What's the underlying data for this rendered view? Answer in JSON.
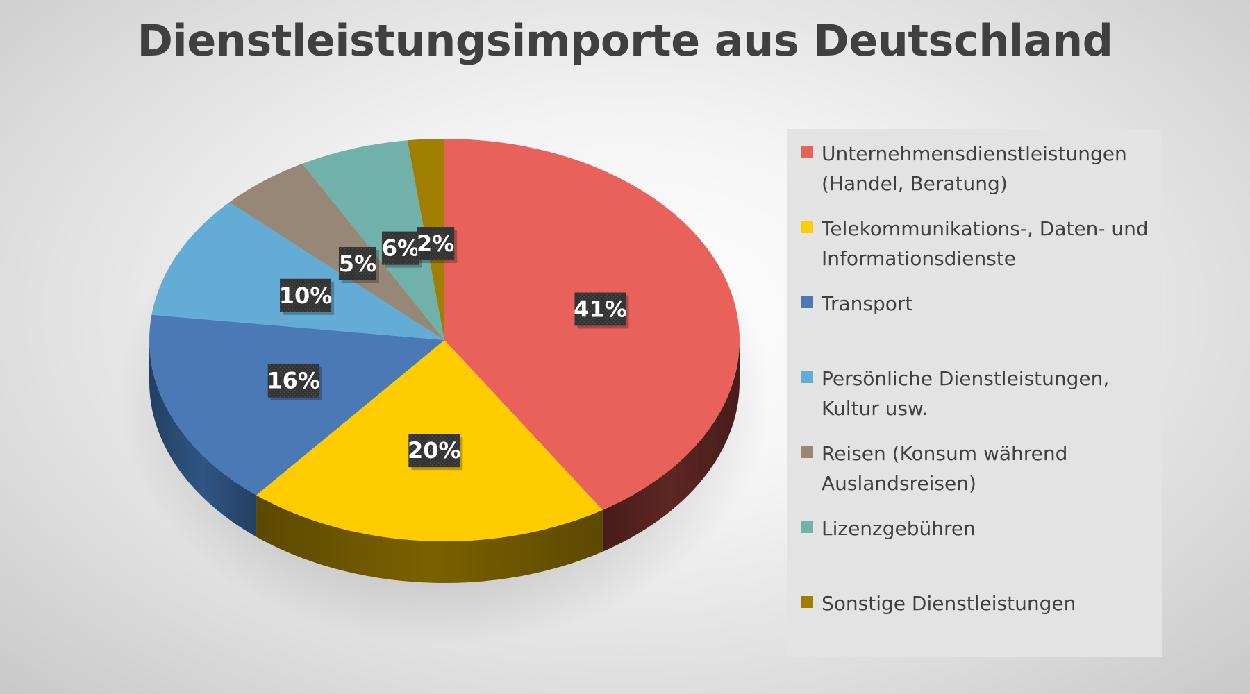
{
  "chart_data": {
    "type": "pie",
    "title": "Dienstleistungsimporte aus Deutschland",
    "categories": [
      "Unternehmensdienstleistungen (Handel, Beratung)",
      "Telekommunikations-, Daten- und Informationsdienste",
      "Transport",
      "Persönliche Dienstleistungen, Kultur usw.",
      "Reisen (Konsum während Auslandsreisen)",
      "Lizenzgebühren",
      "Sonstige Dienstleistungen"
    ],
    "values": [
      41,
      20,
      16,
      10,
      5,
      6,
      2
    ],
    "data_labels": [
      "41%",
      "20%",
      "16%",
      "10%",
      "5%",
      "6%",
      "2%"
    ],
    "unit": "%",
    "colors": [
      "#e8615a",
      "#ffcc00",
      "#4a79b5",
      "#62acd6",
      "#968776",
      "#70b1a9",
      "#a07e00"
    ],
    "side_colors": [
      "#5e2622",
      "#7a6100",
      "#2f5584",
      "#3f7fa6",
      "#6b5f52",
      "#4e8780",
      "#6e5700"
    ],
    "label_box_color": "#3b3b3b",
    "legend_position": "right",
    "style": "3d-pie"
  }
}
